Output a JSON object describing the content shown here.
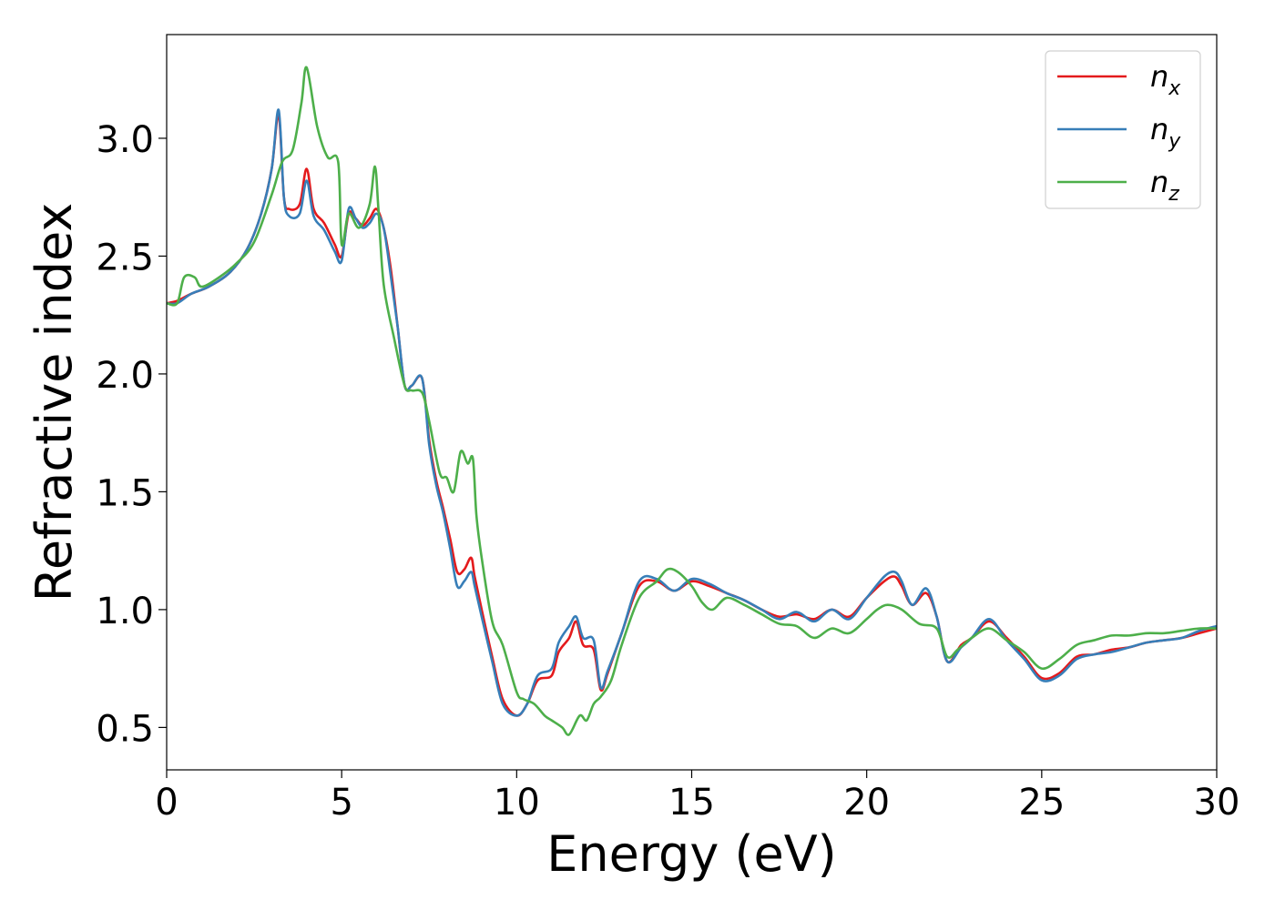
{
  "chart_data": {
    "type": "line",
    "title": "",
    "xlabel": "Energy (eV)",
    "ylabel": "Refractive index",
    "xlim": [
      0,
      30
    ],
    "ylim": [
      0.32,
      3.44
    ],
    "xticks": [
      0,
      5,
      10,
      15,
      20,
      25,
      30
    ],
    "xtick_labels": [
      "0",
      "5",
      "10",
      "15",
      "20",
      "25",
      "30"
    ],
    "yticks": [
      0.5,
      1.0,
      1.5,
      2.0,
      2.5,
      3.0
    ],
    "ytick_labels": [
      "0.5",
      "1.0",
      "1.5",
      "2.0",
      "2.5",
      "3.0"
    ],
    "grid": false,
    "legend_position": "top-right",
    "series": [
      {
        "name": "n_x",
        "label_base": "n",
        "label_sub": "x",
        "color": "#e41a1c",
        "x": [
          0,
          0.3,
          0.7,
          1.2,
          1.8,
          2.3,
          2.7,
          3.0,
          3.2,
          3.35,
          3.5,
          3.8,
          4.0,
          4.2,
          4.5,
          4.8,
          5.0,
          5.2,
          5.4,
          5.6,
          5.8,
          6.0,
          6.2,
          6.4,
          6.6,
          6.8,
          7.0,
          7.3,
          7.5,
          7.7,
          7.9,
          8.1,
          8.3,
          8.5,
          8.7,
          8.8,
          9.0,
          9.3,
          9.6,
          10.0,
          10.3,
          10.6,
          11.0,
          11.2,
          11.5,
          11.7,
          11.9,
          12.2,
          12.4,
          12.6,
          13.0,
          13.5,
          14.0,
          14.5,
          15.0,
          15.5,
          16.0,
          16.5,
          17.0,
          17.5,
          18.0,
          18.5,
          19.0,
          19.5,
          20.0,
          20.5,
          20.8,
          21.0,
          21.3,
          21.7,
          22.0,
          22.3,
          22.7,
          23.0,
          23.5,
          24.0,
          24.5,
          25.0,
          25.5,
          26.0,
          26.5,
          27.0,
          27.5,
          28.0,
          28.5,
          29.0,
          29.5,
          30.0
        ],
        "y": [
          2.3,
          2.31,
          2.34,
          2.37,
          2.43,
          2.53,
          2.68,
          2.87,
          3.1,
          2.75,
          2.7,
          2.72,
          2.87,
          2.7,
          2.64,
          2.55,
          2.5,
          2.68,
          2.66,
          2.63,
          2.66,
          2.7,
          2.62,
          2.45,
          2.2,
          1.95,
          1.95,
          1.98,
          1.72,
          1.55,
          1.43,
          1.3,
          1.16,
          1.17,
          1.22,
          1.14,
          1.0,
          0.8,
          0.62,
          0.55,
          0.6,
          0.7,
          0.72,
          0.82,
          0.88,
          0.95,
          0.85,
          0.83,
          0.66,
          0.73,
          0.9,
          1.1,
          1.12,
          1.08,
          1.12,
          1.1,
          1.07,
          1.04,
          1.0,
          0.97,
          0.98,
          0.96,
          1.0,
          0.97,
          1.05,
          1.12,
          1.14,
          1.1,
          1.02,
          1.07,
          0.97,
          0.78,
          0.85,
          0.88,
          0.95,
          0.88,
          0.8,
          0.71,
          0.73,
          0.8,
          0.81,
          0.83,
          0.84,
          0.86,
          0.87,
          0.88,
          0.9,
          0.92
        ]
      },
      {
        "name": "n_y",
        "label_base": "n",
        "label_sub": "y",
        "color": "#377eb8",
        "x": [
          0,
          0.3,
          0.7,
          1.2,
          1.8,
          2.3,
          2.7,
          3.0,
          3.2,
          3.35,
          3.5,
          3.8,
          4.0,
          4.2,
          4.5,
          4.8,
          5.0,
          5.2,
          5.4,
          5.6,
          5.8,
          6.0,
          6.2,
          6.4,
          6.6,
          6.8,
          7.0,
          7.3,
          7.5,
          7.7,
          7.9,
          8.1,
          8.3,
          8.5,
          8.7,
          8.8,
          9.0,
          9.3,
          9.6,
          10.0,
          10.3,
          10.6,
          11.0,
          11.2,
          11.5,
          11.7,
          11.9,
          12.2,
          12.4,
          12.6,
          13.0,
          13.5,
          14.0,
          14.5,
          15.0,
          15.5,
          16.0,
          16.5,
          17.0,
          17.5,
          18.0,
          18.5,
          19.0,
          19.5,
          20.0,
          20.5,
          20.8,
          21.0,
          21.3,
          21.7,
          22.0,
          22.3,
          22.7,
          23.0,
          23.5,
          24.0,
          24.5,
          25.0,
          25.5,
          26.0,
          26.5,
          27.0,
          27.5,
          28.0,
          28.5,
          29.0,
          29.5,
          30.0
        ],
        "y": [
          2.3,
          2.3,
          2.34,
          2.37,
          2.43,
          2.53,
          2.68,
          2.87,
          3.12,
          2.75,
          2.67,
          2.68,
          2.82,
          2.67,
          2.61,
          2.52,
          2.48,
          2.7,
          2.66,
          2.62,
          2.64,
          2.68,
          2.62,
          2.42,
          2.2,
          1.95,
          1.95,
          1.98,
          1.7,
          1.53,
          1.41,
          1.26,
          1.1,
          1.12,
          1.16,
          1.1,
          0.97,
          0.78,
          0.6,
          0.55,
          0.6,
          0.72,
          0.75,
          0.86,
          0.93,
          0.97,
          0.88,
          0.87,
          0.67,
          0.74,
          0.9,
          1.12,
          1.13,
          1.08,
          1.13,
          1.11,
          1.07,
          1.04,
          1.0,
          0.96,
          0.99,
          0.95,
          1.0,
          0.96,
          1.05,
          1.14,
          1.16,
          1.12,
          1.02,
          1.09,
          0.97,
          0.78,
          0.84,
          0.88,
          0.96,
          0.87,
          0.79,
          0.7,
          0.72,
          0.79,
          0.81,
          0.82,
          0.84,
          0.86,
          0.87,
          0.88,
          0.91,
          0.93
        ]
      },
      {
        "name": "n_z",
        "label_base": "n",
        "label_sub": "z",
        "color": "#4daf4a",
        "x": [
          0,
          0.3,
          0.5,
          0.8,
          1.0,
          1.5,
          2.0,
          2.5,
          3.0,
          3.3,
          3.6,
          3.85,
          4.0,
          4.3,
          4.6,
          4.9,
          5.0,
          5.2,
          5.5,
          5.8,
          5.95,
          6.05,
          6.2,
          6.5,
          6.8,
          7.0,
          7.3,
          7.5,
          7.8,
          8.0,
          8.2,
          8.4,
          8.6,
          8.75,
          8.85,
          9.0,
          9.3,
          9.6,
          10.0,
          10.2,
          10.5,
          10.8,
          11.0,
          11.3,
          11.5,
          11.8,
          12.0,
          12.2,
          12.4,
          12.7,
          13.0,
          13.5,
          14.0,
          14.3,
          14.6,
          15.0,
          15.3,
          15.6,
          16.0,
          16.5,
          17.0,
          17.5,
          18.0,
          18.5,
          19.0,
          19.5,
          20.0,
          20.3,
          20.6,
          21.0,
          21.5,
          22.0,
          22.3,
          22.6,
          23.0,
          23.5,
          24.0,
          24.5,
          25.0,
          25.5,
          26.0,
          26.5,
          27.0,
          27.5,
          28.0,
          28.5,
          29.0,
          29.5,
          30.0
        ],
        "y": [
          2.3,
          2.3,
          2.41,
          2.41,
          2.37,
          2.41,
          2.47,
          2.56,
          2.76,
          2.9,
          2.95,
          3.15,
          3.3,
          3.05,
          2.92,
          2.9,
          2.55,
          2.68,
          2.62,
          2.72,
          2.88,
          2.7,
          2.38,
          2.15,
          1.95,
          1.93,
          1.92,
          1.8,
          1.58,
          1.56,
          1.5,
          1.67,
          1.62,
          1.64,
          1.4,
          1.22,
          0.95,
          0.85,
          0.65,
          0.62,
          0.6,
          0.55,
          0.53,
          0.5,
          0.47,
          0.55,
          0.53,
          0.6,
          0.63,
          0.7,
          0.85,
          1.05,
          1.12,
          1.17,
          1.16,
          1.1,
          1.03,
          1.0,
          1.05,
          1.02,
          0.98,
          0.94,
          0.93,
          0.88,
          0.92,
          0.9,
          0.96,
          1.0,
          1.02,
          1.0,
          0.94,
          0.92,
          0.8,
          0.83,
          0.88,
          0.92,
          0.87,
          0.82,
          0.75,
          0.79,
          0.85,
          0.87,
          0.89,
          0.89,
          0.9,
          0.9,
          0.91,
          0.92,
          0.92
        ]
      }
    ]
  }
}
